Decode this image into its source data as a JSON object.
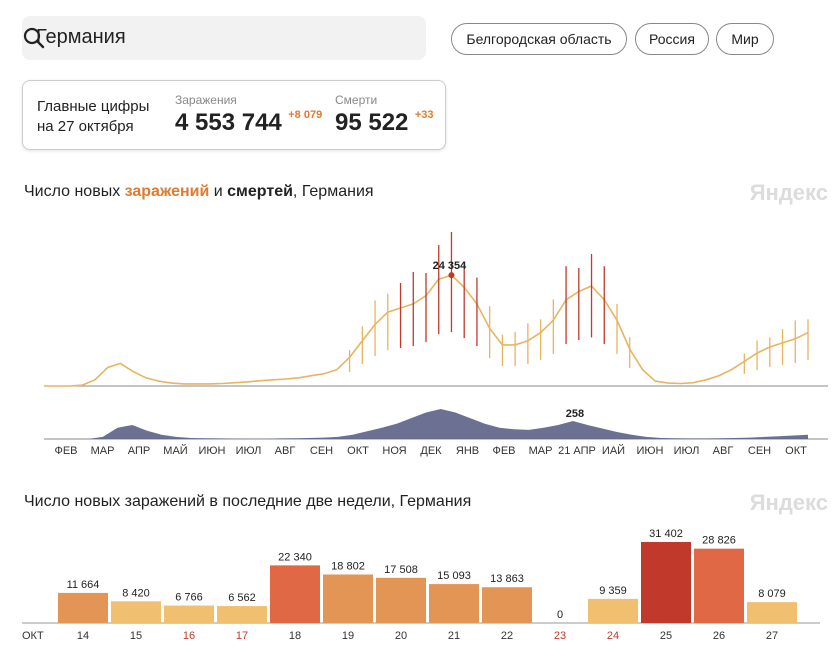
{
  "search": {
    "value": "Германия"
  },
  "regions": [
    "Белгородская область",
    "Россия",
    "Мир"
  ],
  "summary": {
    "label_line1": "Главные цифры",
    "label_line2": "на 27 октября",
    "cases_caption": "Заражения",
    "cases_value": "4 553 744",
    "cases_delta": "+8 079",
    "deaths_caption": "Смерти",
    "deaths_value": "95 522",
    "deaths_delta": "+33"
  },
  "chart1_title": {
    "pre": "Число новых ",
    "cases": "заражений",
    "mid": " и ",
    "deaths": "смертей",
    "post": ", Германия"
  },
  "chart2_title": "Число новых заражений в последние две недели, Германия",
  "brand": "Яндекс",
  "colors": {
    "cases_light": "#e8b460",
    "cases_dark": "#c0392b",
    "deaths": "#5c6288",
    "bar_light": "#f0c070",
    "bar_mid": "#e39556",
    "bar_dark": "#c0392b"
  },
  "chart_data": [
    {
      "type": "area",
      "title": "Число новых заражений и смертей, Германия",
      "x_tick_labels": [
        "ФЕВ",
        "МАР",
        "АПР",
        "МАЙ",
        "ИЮН",
        "ИЮЛ",
        "АВГ",
        "СЕН",
        "ОКТ",
        "НОЯ",
        "ДЕК",
        "ЯНВ",
        "ФЕВ",
        "МАР",
        "21 АПР",
        "ИАЙ",
        "ИЮН",
        "ИЮЛ",
        "АВГ",
        "СЕН",
        "ОКТ"
      ],
      "annotations": [
        {
          "series": "cases",
          "value": "24 354"
        },
        {
          "series": "deaths",
          "value": "258"
        }
      ],
      "series": [
        {
          "key": "cases",
          "values": [
            0,
            0,
            0,
            200,
            1500,
            4500,
            5500,
            3500,
            2000,
            1200,
            700,
            500,
            500,
            500,
            600,
            800,
            1000,
            1300,
            1500,
            1700,
            2000,
            2500,
            3000,
            4000,
            7000,
            11000,
            15000,
            18000,
            19000,
            20000,
            22000,
            26000,
            27000,
            24000,
            20000,
            14000,
            10000,
            10000,
            11000,
            13000,
            16000,
            21000,
            23000,
            24354,
            21000,
            16000,
            9000,
            4000,
            1200,
            700,
            600,
            800,
            1500,
            2500,
            4000,
            6000,
            8000,
            9500,
            10500,
            11500,
            13000
          ]
        },
        {
          "key": "deaths",
          "values": [
            0,
            0,
            0,
            0,
            30,
            160,
            200,
            120,
            60,
            30,
            15,
            10,
            8,
            6,
            5,
            5,
            8,
            10,
            15,
            20,
            30,
            60,
            110,
            160,
            220,
            300,
            380,
            430,
            380,
            300,
            220,
            160,
            140,
            130,
            160,
            200,
            258,
            200,
            150,
            100,
            60,
            30,
            15,
            10,
            8,
            8,
            10,
            15,
            20,
            30,
            40,
            50,
            60
          ]
        }
      ]
    },
    {
      "type": "bar",
      "title": "Число новых заражений в последние две недели, Германия",
      "x_label_prefix": "ОКТ",
      "categories": [
        "14",
        "15",
        "16",
        "17",
        "18",
        "19",
        "20",
        "21",
        "22",
        "23",
        "24",
        "25",
        "26",
        "27"
      ],
      "values": [
        11664,
        8420,
        6766,
        6562,
        22340,
        18802,
        17508,
        15093,
        13863,
        0,
        9359,
        31402,
        28826,
        8079
      ],
      "value_labels": [
        "11 664",
        "8 420",
        "6 766",
        "6 562",
        "22 340",
        "18 802",
        "17 508",
        "15 093",
        "13 863",
        "0",
        "9 359",
        "31 402",
        "28 826",
        "8 079"
      ],
      "weekend_categories": [
        "16",
        "17",
        "23",
        "24"
      ]
    }
  ]
}
